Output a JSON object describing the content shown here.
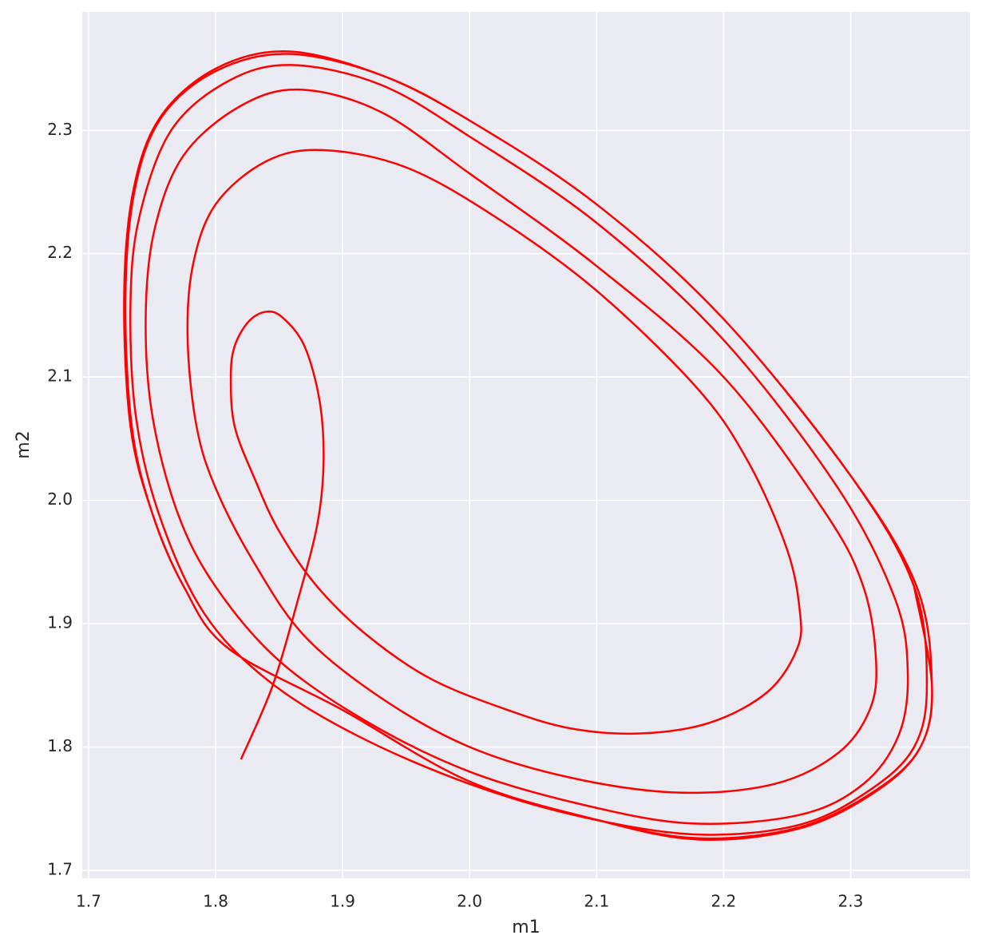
{
  "chart_data": {
    "type": "line",
    "xlabel": "m1",
    "ylabel": "m2",
    "color": "#ff0000",
    "grid": true,
    "xlim": [
      1.695,
      2.394
    ],
    "ylim": [
      1.6935,
      2.396
    ],
    "xticks": [
      1.7,
      1.8,
      1.9,
      {
        "value": 2,
        "label": "2.0"
      },
      2.1,
      2.2,
      2.3
    ],
    "yticks": [
      1.7,
      1.8,
      1.9,
      {
        "value": 2,
        "label": "2.0"
      },
      2.1,
      2.2,
      2.3
    ],
    "x": [
      1.82,
      1.845,
      1.865,
      1.88,
      1.885,
      1.882,
      1.87,
      1.853,
      1.84,
      1.826,
      1.815,
      1.812,
      1.815,
      1.831,
      1.85,
      1.88,
      1.92,
      1.97,
      2.03,
      2.08,
      2.135,
      2.19,
      2.235,
      2.258,
      2.26,
      2.25,
      2.22,
      2.18,
      2.1,
      2.02,
      1.95,
      1.885,
      1.84,
      1.8,
      1.782,
      1.778,
      1.785,
      1.8,
      1.83,
      1.87,
      1.93,
      2.0,
      2.08,
      2.165,
      2.24,
      2.29,
      2.315,
      2.32,
      2.31,
      2.28,
      2.2,
      2.1,
      2.0,
      1.93,
      1.867,
      1.82,
      1.775,
      1.752,
      1.745,
      1.75,
      1.77,
      1.8,
      1.85,
      1.92,
      2.0,
      2.09,
      2.175,
      2.26,
      2.31,
      2.338,
      2.345,
      2.335,
      2.29,
      2.2,
      2.1,
      2.0,
      1.93,
      1.86,
      1.81,
      1.765,
      1.74,
      1.733,
      1.737,
      1.755,
      1.79,
      1.84,
      1.91,
      2.0,
      2.09,
      2.18,
      2.26,
      2.315,
      2.35,
      2.36,
      2.35,
      2.3,
      2.2,
      2.1,
      2.0,
      1.93,
      1.857,
      1.8,
      1.757,
      1.736,
      1.729,
      1.734,
      1.75,
      1.775,
      1.81,
      1.9,
      2.0,
      2.1,
      2.18,
      2.26,
      2.32,
      2.355,
      2.364,
      2.352,
      2.3,
      2.2,
      2.1,
      2.0,
      1.93,
      1.857,
      1.8,
      1.756,
      1.735,
      1.728,
      1.733,
      1.75,
      1.775,
      1.81,
      1.9,
      2.0,
      2.1,
      2.18,
      2.26,
      2.32,
      2.355,
      2.364,
      2.35
    ],
    "values": [
      1.79,
      1.85,
      1.92,
      1.98,
      2.03,
      2.08,
      2.125,
      2.148,
      2.153,
      2.145,
      2.125,
      2.1,
      2.06,
      2.017,
      1.975,
      1.93,
      1.89,
      1.855,
      1.83,
      1.815,
      1.811,
      1.82,
      1.845,
      1.88,
      1.91,
      1.96,
      2.03,
      2.09,
      2.17,
      2.23,
      2.27,
      2.284,
      2.275,
      2.24,
      2.19,
      2.13,
      2.06,
      2.01,
      1.95,
      1.89,
      1.84,
      1.8,
      1.775,
      1.763,
      1.77,
      1.795,
      1.83,
      1.87,
      1.93,
      1.99,
      2.1,
      2.19,
      2.265,
      2.315,
      2.333,
      2.32,
      2.28,
      2.22,
      2.15,
      2.07,
      1.99,
      1.93,
      1.87,
      1.82,
      1.78,
      1.753,
      1.738,
      1.745,
      1.77,
      1.81,
      1.86,
      1.92,
      2.01,
      2.13,
      2.225,
      2.295,
      2.337,
      2.353,
      2.34,
      2.3,
      2.23,
      2.16,
      2.07,
      1.99,
      1.91,
      1.855,
      1.81,
      1.77,
      1.743,
      1.729,
      1.737,
      1.765,
      1.8,
      1.85,
      1.93,
      2.02,
      2.147,
      2.24,
      2.308,
      2.345,
      2.362,
      2.348,
      2.31,
      2.25,
      2.163,
      2.06,
      1.99,
      1.93,
      1.88,
      1.83,
      1.772,
      1.741,
      1.726,
      1.735,
      1.765,
      1.8,
      1.85,
      1.93,
      2.02,
      2.147,
      2.24,
      2.308,
      2.345,
      2.364,
      2.35,
      2.31,
      2.25,
      2.165,
      2.06,
      1.99,
      1.93,
      1.88,
      1.83,
      1.772,
      1.741,
      1.725,
      1.734,
      1.764,
      1.8,
      1.85,
      1.93
    ]
  }
}
